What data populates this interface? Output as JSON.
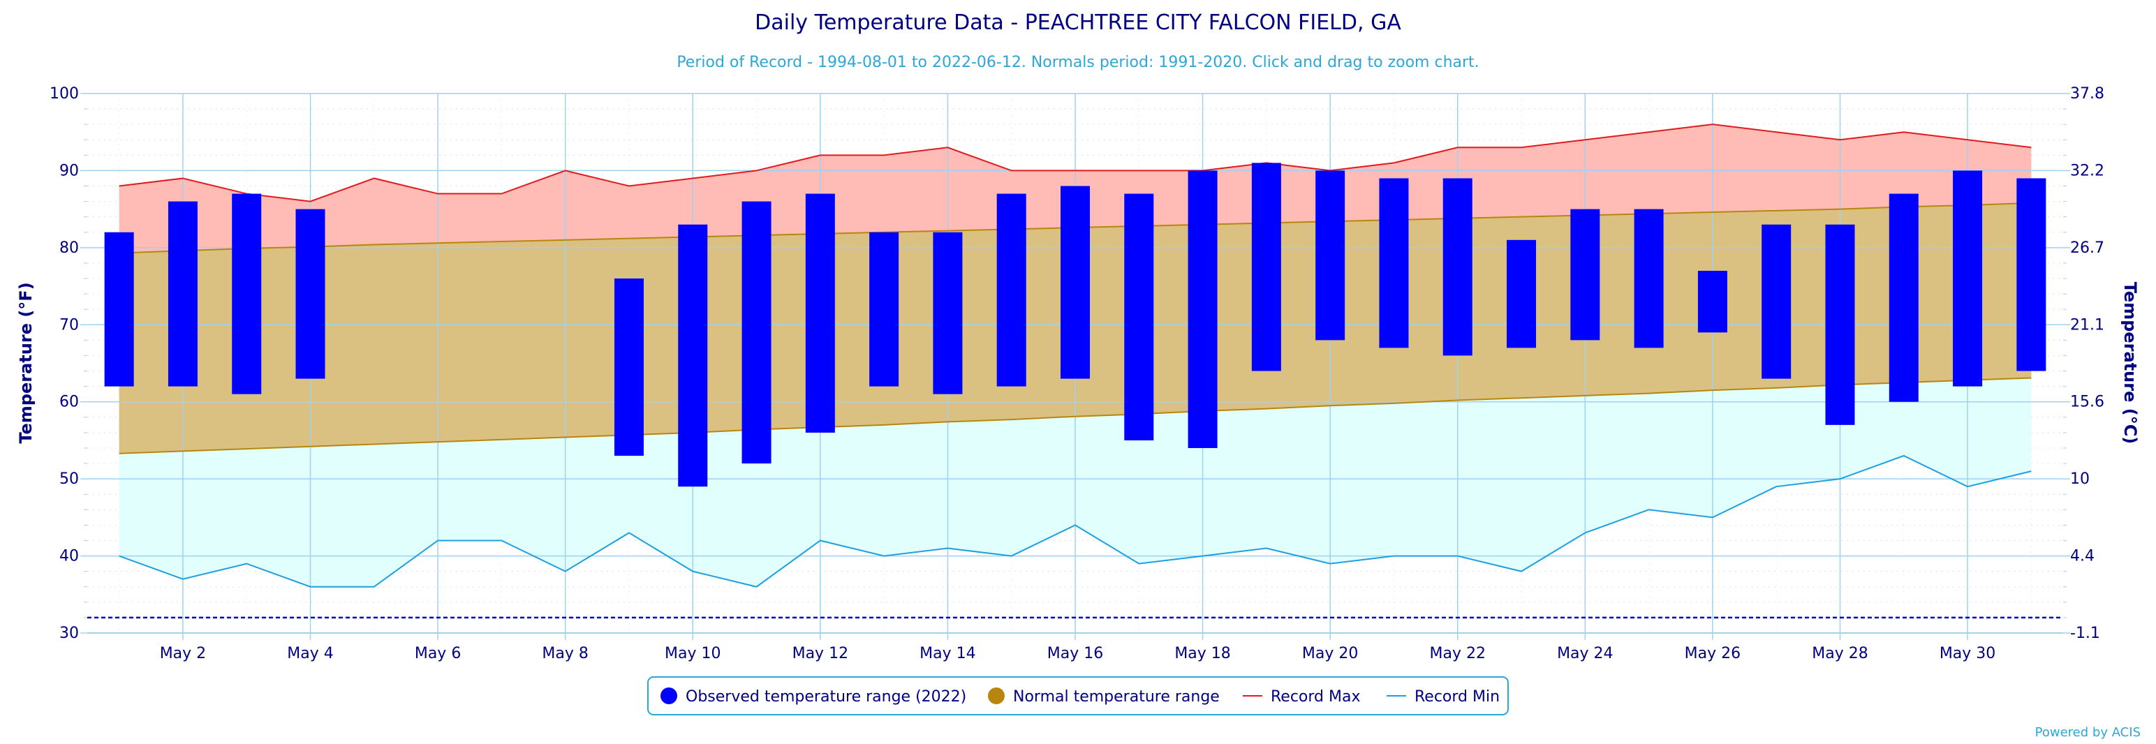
{
  "title": "Daily Temperature Data - PEACHTREE CITY FALCON FIELD, GA",
  "subtitle": "Period of Record - 1994-08-01 to 2022-06-12. Normals period: 1991-2020. Click and drag to zoom chart.",
  "credit": "Powered by ACIS",
  "colors": {
    "observed": "#0000ff",
    "normal": "#b8860b",
    "normal_fill": "#dbc181",
    "record_max": "#e31a1c",
    "record_max_fill": "#ffbcb6",
    "record_min": "#1e9fe0",
    "record_min_fill": "#e1fffd",
    "axis_text": "#000080",
    "subtitle": "#2ea6d8",
    "grid": "#9fd2ef"
  },
  "chart_data": {
    "type": "bar",
    "title": "Daily Temperature Data - PEACHTREE CITY FALCON FIELD, GA",
    "subtitle": "Period of Record - 1994-08-01 to 2022-06-12. Normals period: 1991-2020. Click and drag to zoom chart.",
    "ylabel": "Temperature (°F)",
    "ylabel_right": "Temperature (°C)",
    "ylim": [
      30,
      100
    ],
    "yticks": [
      "30",
      "40",
      "50",
      "60",
      "70",
      "80",
      "90",
      "100"
    ],
    "yticks_right": [
      "-1.1",
      "4.4",
      "10",
      "15.6",
      "21.1",
      "26.7",
      "32.2",
      "37.8"
    ],
    "xticks": [
      "May 2",
      "May 4",
      "May 6",
      "May 8",
      "May 10",
      "May 12",
      "May 14",
      "May 16",
      "May 18",
      "May 20",
      "May 22",
      "May 24",
      "May 26",
      "May 28",
      "May 30"
    ],
    "xtick_days": [
      2,
      4,
      6,
      8,
      10,
      12,
      14,
      16,
      18,
      20,
      22,
      24,
      26,
      28,
      30
    ],
    "days": [
      1,
      2,
      3,
      4,
      5,
      6,
      7,
      8,
      9,
      10,
      11,
      12,
      13,
      14,
      15,
      16,
      17,
      18,
      19,
      20,
      21,
      22,
      23,
      24,
      25,
      26,
      27,
      28,
      29,
      30,
      31
    ],
    "series": [
      {
        "name": "Observed temperature range (2022)",
        "max": [
          82,
          86,
          87,
          85,
          null,
          null,
          null,
          null,
          76,
          83,
          86,
          87,
          82,
          82,
          87,
          88,
          87,
          90,
          91,
          90,
          89,
          89,
          81,
          85,
          85,
          77,
          83,
          83,
          87,
          90,
          89
        ],
        "min": [
          62,
          62,
          61,
          63,
          null,
          null,
          null,
          null,
          53,
          49,
          52,
          56,
          62,
          61,
          62,
          63,
          55,
          54,
          64,
          68,
          67,
          66,
          67,
          68,
          67,
          69,
          63,
          57,
          60,
          62,
          64
        ]
      },
      {
        "name": "Normal temperature range",
        "max": [
          79.3,
          79.6,
          79.9,
          80.1,
          80.4,
          80.6,
          80.8,
          81.0,
          81.2,
          81.4,
          81.6,
          81.8,
          82.0,
          82.2,
          82.4,
          82.6,
          82.8,
          83.0,
          83.2,
          83.4,
          83.6,
          83.8,
          84.0,
          84.2,
          84.4,
          84.6,
          84.8,
          85.0,
          85.3,
          85.5,
          85.8
        ],
        "min": [
          53.3,
          53.6,
          53.9,
          54.2,
          54.5,
          54.8,
          55.1,
          55.4,
          55.7,
          56.0,
          56.4,
          56.7,
          57.0,
          57.4,
          57.7,
          58.1,
          58.4,
          58.8,
          59.1,
          59.5,
          59.8,
          60.2,
          60.5,
          60.8,
          61.1,
          61.5,
          61.8,
          62.2,
          62.5,
          62.8,
          63.1
        ]
      },
      {
        "name": "Record Max",
        "values": [
          88,
          89,
          87,
          86,
          89,
          87,
          87,
          90,
          88,
          89,
          90,
          92,
          92,
          93,
          90,
          90,
          90,
          90,
          91,
          90,
          91,
          93,
          93,
          94,
          95,
          96,
          95,
          94,
          95,
          94,
          93
        ]
      },
      {
        "name": "Record Min",
        "values": [
          40,
          37,
          39,
          36,
          36,
          42,
          42,
          38,
          43,
          38,
          36,
          42,
          40,
          41,
          40,
          44,
          39,
          40,
          41,
          39,
          40,
          40,
          38,
          43,
          46,
          45,
          49,
          50,
          53,
          49,
          51
        ]
      }
    ],
    "reference_line": 32,
    "legend": [
      "Observed temperature range (2022)",
      "Normal temperature range",
      "Record Max",
      "Record Min"
    ],
    "legend_position": "bottom",
    "grid": true
  }
}
